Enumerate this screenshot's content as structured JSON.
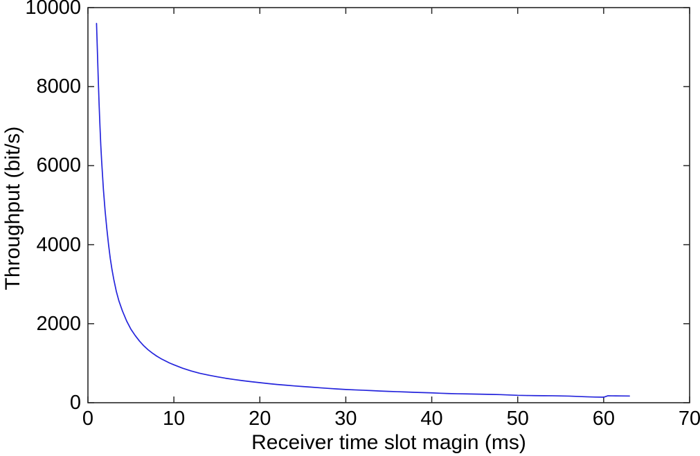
{
  "figure": {
    "background": "#ffffff"
  },
  "chart_data": {
    "type": "line",
    "title": "",
    "xlabel": "Receiver time slot magin (ms)",
    "ylabel": "Throughput (bit/s)",
    "xlim": [
      0,
      70
    ],
    "ylim": [
      0,
      10000
    ],
    "xticks": [
      0,
      10,
      20,
      30,
      40,
      50,
      60,
      70
    ],
    "yticks": [
      0,
      2000,
      4000,
      6000,
      8000,
      10000
    ],
    "grid": false,
    "legend_position": "none",
    "axis_color": "#262626",
    "tick_direction": "in",
    "box": true,
    "series": [
      {
        "name": "throughput-curve",
        "color": "#2424DC",
        "x": [
          1,
          1.1,
          1.2,
          1.3,
          1.4,
          1.5,
          1.6,
          1.8,
          2,
          2.2,
          2.4,
          2.6,
          2.8,
          3,
          3.3,
          3.6,
          4,
          4.5,
          5,
          5.5,
          6,
          6.5,
          7,
          7.5,
          8,
          8.5,
          9,
          9.5,
          10,
          11,
          12,
          13,
          14,
          15,
          16,
          17,
          18,
          19,
          20,
          21,
          22,
          23,
          24,
          25,
          26,
          27,
          28,
          29,
          30,
          31,
          32,
          33,
          34,
          35,
          36,
          37,
          38,
          39,
          40,
          41,
          42,
          43,
          44,
          45,
          46,
          47,
          48,
          49,
          50,
          51,
          52,
          53,
          54,
          55,
          56,
          57,
          58,
          59,
          60,
          60.5,
          61,
          62,
          63
        ],
        "y": [
          9600,
          8900,
          8200,
          7550,
          7000,
          6500,
          6100,
          5400,
          4850,
          4400,
          4000,
          3650,
          3370,
          3130,
          2820,
          2580,
          2330,
          2070,
          1860,
          1700,
          1560,
          1440,
          1340,
          1255,
          1180,
          1115,
          1060,
          1005,
          960,
          875,
          805,
          745,
          700,
          658,
          620,
          588,
          558,
          532,
          508,
          484,
          462,
          444,
          426,
          410,
          394,
          378,
          362,
          348,
          335,
          325,
          316,
          306,
          296,
          287,
          279,
          271,
          263,
          256,
          249,
          240,
          232,
          227,
          223,
          219,
          214,
          210,
          205,
          196,
          187,
          183,
          180,
          178,
          176,
          172,
          167,
          159,
          150,
          143,
          140,
          176,
          174,
          172,
          170
        ]
      }
    ]
  }
}
